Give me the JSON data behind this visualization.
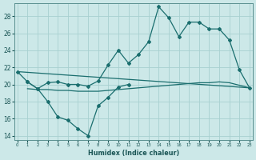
{
  "xlabel": "Humidex (Indice chaleur)",
  "background_color": "#cce8e8",
  "grid_color": "#a8d0d0",
  "line_color": "#1a6e6e",
  "ylim": [
    13.5,
    29.5
  ],
  "xlim": [
    -0.3,
    23.3
  ],
  "yticks": [
    14,
    16,
    18,
    20,
    22,
    24,
    26,
    28
  ],
  "series_zigzag": {
    "x": [
      0,
      1,
      2,
      3,
      4,
      5,
      6,
      7,
      8,
      9,
      10,
      11
    ],
    "y": [
      21.5,
      20.3,
      19.5,
      18.0,
      16.2,
      15.8,
      14.8,
      14.0,
      17.5,
      18.5,
      19.7,
      20.0
    ]
  },
  "series_main": {
    "x": [
      1,
      2,
      3,
      4,
      5,
      6,
      7,
      8,
      9,
      10,
      11,
      12,
      13,
      14,
      15,
      16,
      17,
      18,
      19,
      20,
      21,
      22,
      23
    ],
    "y": [
      20.3,
      19.5,
      20.2,
      20.3,
      20.0,
      20.0,
      19.8,
      20.4,
      22.3,
      24.0,
      22.5,
      23.5,
      25.0,
      29.1,
      27.8,
      25.6,
      27.3,
      27.3,
      26.5,
      26.5,
      25.2,
      21.7,
      19.6
    ]
  },
  "series_straight": {
    "x": [
      0,
      23
    ],
    "y": [
      21.5,
      19.6
    ]
  },
  "series_flat": {
    "x": [
      1,
      2,
      3,
      4,
      5,
      6,
      7,
      8,
      9,
      10,
      11,
      12,
      13,
      14,
      15,
      16,
      17,
      18,
      19,
      20,
      21,
      22,
      23
    ],
    "y": [
      19.5,
      19.4,
      19.4,
      19.3,
      19.3,
      19.2,
      19.2,
      19.2,
      19.3,
      19.4,
      19.5,
      19.6,
      19.7,
      19.8,
      19.9,
      20.0,
      20.1,
      20.2,
      20.2,
      20.3,
      20.2,
      19.9,
      19.6
    ]
  }
}
